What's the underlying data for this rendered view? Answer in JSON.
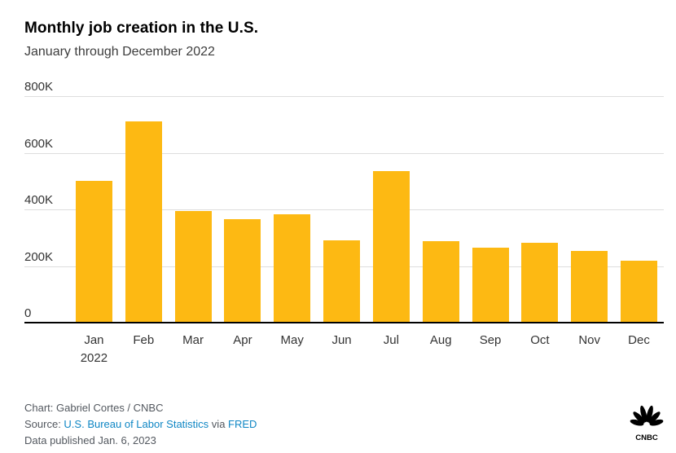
{
  "chart_data": {
    "type": "bar",
    "title": "Monthly job creation in the U.S.",
    "subtitle": "January through December 2022",
    "categories": [
      "Jan",
      "Feb",
      "Mar",
      "Apr",
      "May",
      "Jun",
      "Jul",
      "Aug",
      "Sep",
      "Oct",
      "Nov",
      "Dec"
    ],
    "x_sub_labels": [
      "2022",
      "",
      "",
      "",
      "",
      "",
      "",
      "",
      "",
      "",
      "",
      ""
    ],
    "values": [
      504000,
      714000,
      398000,
      368000,
      386000,
      293000,
      537000,
      292000,
      269000,
      284000,
      256000,
      223000
    ],
    "ylim": [
      0,
      800000
    ],
    "y_ticks": [
      0,
      200000,
      400000,
      600000,
      800000
    ],
    "y_tick_labels": [
      "0",
      "200K",
      "400K",
      "600K",
      "800K"
    ],
    "grid": true,
    "legend": "none",
    "xlabel": "",
    "ylabel": ""
  },
  "footer": {
    "credit": "Chart: Gabriel Cortes / CNBC",
    "source_prefix": "Source: ",
    "source_link_bls": "U.S. Bureau of Labor Statistics",
    "source_via": " via ",
    "source_link_fred": "FRED",
    "published": "Data published Jan. 6, 2023",
    "logo_text": "CNBC"
  },
  "colors": {
    "bar": "#FDB913",
    "link": "#0E86C4",
    "footer_text": "#53585F",
    "grid": "#DDDDDD",
    "axis_text": "#333333"
  }
}
